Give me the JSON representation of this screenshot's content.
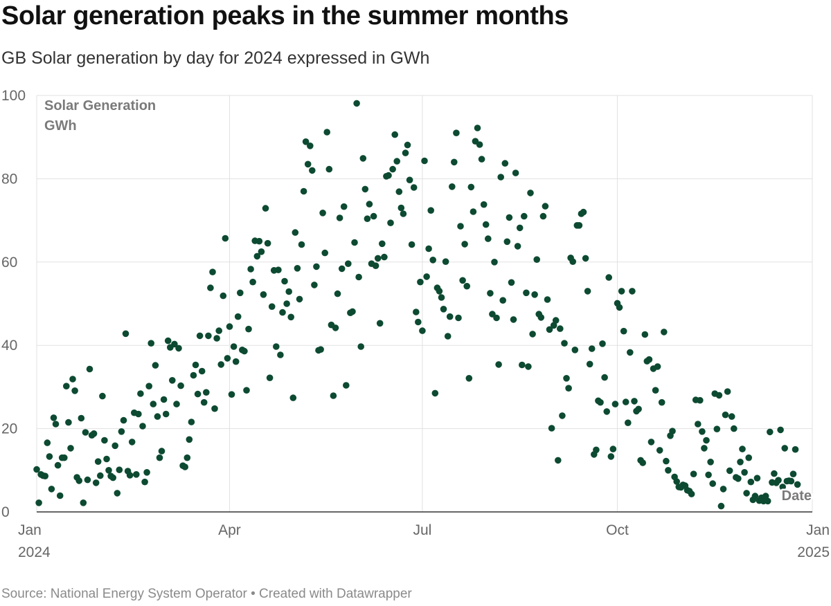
{
  "header": {
    "title": "Solar generation peaks in the summer months",
    "subtitle": "GB Solar generation by day for 2024 expressed in GWh"
  },
  "footer": {
    "source": "Source: National Energy System Operator • Created with Datawrapper"
  },
  "colors": {
    "dot": "#0d4a32",
    "grid": "#e1e1e1",
    "axis": "#333333"
  },
  "chart_data": {
    "type": "scatter",
    "title": "Solar generation peaks in the summer months",
    "subtitle": "GB Solar generation by day for 2024 expressed in GWh",
    "ylabel_lines": [
      "Solar Generation",
      "GWh"
    ],
    "xlabel": "Date",
    "ylim": [
      0,
      100
    ],
    "xlim": [
      "2024-01-01",
      "2025-01-01"
    ],
    "grid": true,
    "yticks": [
      {
        "value": 0,
        "label": "0"
      },
      {
        "value": 20,
        "label": "20"
      },
      {
        "value": 40,
        "label": "40"
      },
      {
        "value": 60,
        "label": "60"
      },
      {
        "value": 80,
        "label": "80"
      },
      {
        "value": 100,
        "label": "100"
      }
    ],
    "xticks": [
      {
        "date": "2024-01-01",
        "label": "Jan",
        "sublabel": "2024"
      },
      {
        "date": "2024-04-01",
        "label": "Apr",
        "sublabel": ""
      },
      {
        "date": "2024-07-01",
        "label": "Jul",
        "sublabel": ""
      },
      {
        "date": "2024-10-01",
        "label": "Oct",
        "sublabel": ""
      },
      {
        "date": "2025-01-01",
        "label": "Jan",
        "sublabel": "2025"
      }
    ],
    "series": [
      {
        "values": [
          10.2,
          2.2,
          9.0,
          8.7,
          8.6,
          16.6,
          13.3,
          5.5,
          22.6,
          21.1,
          11.2,
          3.9,
          13.0,
          13.0,
          30.2,
          21.5,
          15.3,
          31.9,
          29.1,
          8.3,
          7.5,
          22.5,
          2.2,
          19.1,
          7.7,
          34.3,
          18.4,
          18.8,
          7.0,
          12.1,
          8.7,
          27.8,
          17.2,
          12.7,
          10.0,
          8.6,
          8.2,
          15.9,
          4.5,
          10.1,
          19.3,
          22.0,
          42.8,
          9.8,
          8.8,
          16.8,
          23.8,
          9.0,
          23.5,
          28.4,
          20.6,
          7.2,
          9.5,
          30.2,
          40.5,
          25.9,
          35.2,
          22.9,
          13.0,
          14.6,
          27.0,
          23.5,
          41.1,
          39.5,
          31.6,
          40.3,
          25.9,
          39.3,
          30.3,
          11.1,
          10.8,
          13.0,
          17.4,
          21.6,
          32.8,
          35.3,
          28.3,
          42.3,
          33.8,
          26.3,
          28.7,
          42.3,
          53.8,
          57.6,
          24.8,
          41.7,
          43.5,
          35.4,
          51.9,
          65.7,
          36.9,
          44.5,
          28.2,
          39.7,
          36.1,
          46.9,
          52.6,
          38.9,
          38.6,
          29.2,
          43.9,
          58.3,
          55.2,
          65.1,
          61.4,
          65.0,
          62.5,
          52.2,
          72.9,
          64.5,
          32.2,
          49.3,
          58.0,
          39.7,
          58.1,
          37.7,
          47.9,
          55.4,
          50.0,
          52.9,
          46.8,
          27.4,
          67.1,
          58.5,
          51.1,
          64.2,
          77.0,
          88.9,
          83.5,
          87.9,
          82.0,
          54.5,
          58.9,
          38.8,
          39.0,
          71.8,
          62.2,
          91.2,
          82.3,
          44.9,
          27.9,
          44.2,
          52.4,
          70.6,
          58.4,
          73.3,
          30.4,
          59.6,
          47.8,
          48.1,
          64.7,
          98.1,
          56.4,
          39.7,
          84.9,
          77.5,
          70.4,
          73.9,
          59.6,
          71.0,
          59.1,
          60.9,
          45.3,
          64.4,
          61.2,
          80.6,
          80.8,
          69.4,
          82.3,
          90.6,
          84.2,
          76.9,
          73.0,
          71.6,
          86.2,
          88.1,
          79.7,
          64.2,
          77.9,
          48.0,
          45.6,
          55.2,
          43.5,
          84.3,
          56.5,
          63.2,
          72.4,
          60.5,
          28.5,
          53.8,
          53.0,
          51.5,
          48.7,
          60.1,
          42.2,
          46.9,
          78.1,
          84.0,
          91.0,
          46.6,
          68.6,
          55.6,
          64.3,
          54.2,
          32.1,
          78.0,
          72.1,
          89.0,
          92.2,
          88.2,
          84.7,
          73.8,
          69.0,
          65.6,
          52.5,
          47.5,
          60.0,
          46.6,
          35.4,
          80.4,
          50.8,
          83.7,
          64.9,
          70.7,
          55.1,
          46.2,
          81.4,
          63.8,
          68.2,
          35.3,
          71.0,
          52.6,
          34.9,
          76.6,
          42.7,
          52.2,
          60.6,
          47.5,
          46.7,
          71.0,
          73.4,
          51.0,
          43.8,
          20.1,
          44.8,
          46.0,
          12.4,
          44.0,
          23.1,
          40.5,
          32.1,
          29.7,
          61.0,
          60.1,
          38.9,
          68.8,
          68.8,
          71.6,
          72.0,
          60.9,
          53.0,
          35.5,
          39.2,
          13.8,
          14.9,
          26.7,
          26.3,
          40.4,
          32.3,
          24.1,
          56.3,
          13.3,
          15.1,
          25.9,
          50.1,
          49.1,
          53.0,
          43.4,
          26.4,
          21.4,
          38.3,
          53.0,
          26.6,
          24.2,
          24.7,
          12.4,
          11.8,
          42.6,
          36.2,
          36.6,
          16.8,
          34.4,
          29.2,
          34.9,
          14.8,
          26.3,
          43.2,
          12.2,
          10.0,
          18.3,
          19.4,
          8.4,
          7.3,
          6.0,
          5.9,
          6.5,
          6.3,
          5.2,
          5.0,
          4.3,
          9.1,
          26.9,
          21.1,
          26.8,
          19.3,
          15.3,
          17.2,
          8.9,
          12.0,
          6.8,
          28.4,
          19.9,
          28.0,
          1.4,
          5.5,
          23.3,
          28.9,
          9.9,
          22.9,
          20.0,
          8.3,
          8.0,
          12.0,
          15.1,
          9.5,
          4.5,
          13.0,
          7.2,
          2.9,
          3.8,
          8.1,
          2.7,
          3.4,
          2.6,
          3.8,
          2.6,
          19.2,
          7.1,
          9.2,
          7.0,
          7.6,
          19.7,
          6.0,
          15.3,
          7.4,
          7.5,
          7.4,
          9.1,
          15.0,
          6.6
        ]
      }
    ]
  }
}
